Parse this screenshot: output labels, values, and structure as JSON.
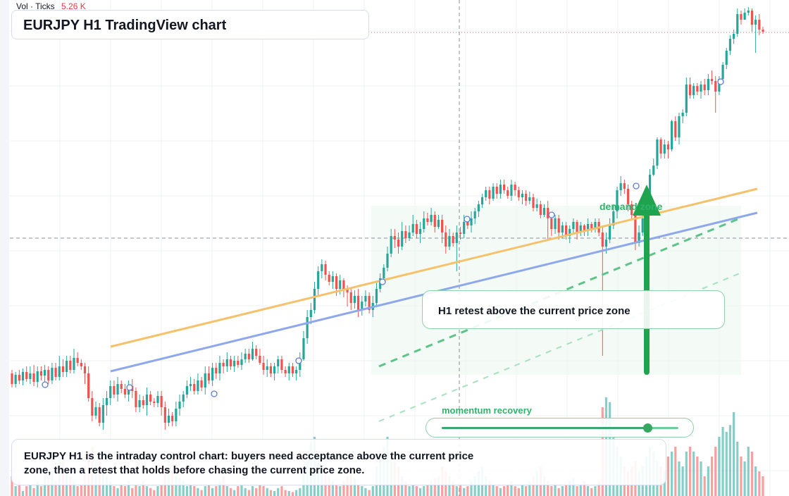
{
  "header": {
    "vol_label": "Vol · Ticks",
    "vol_value": "5.26 K",
    "title": "EURJPY H1 TradingView chart"
  },
  "annotations": {
    "callout": "H1 retest above the current price zone",
    "zone_label": "demand zone",
    "momentum_label": "momentum recovery",
    "momentum_level": 0.87,
    "summary": "EURJPY H1 is the intraday control chart: buyers need acceptance above the current price zone, then a retest that holds before chasing the current price zone."
  },
  "colors": {
    "bull": "#26a69a",
    "bear": "#ef5350",
    "accent_green": "#2eb36a",
    "orange_line": "#f5c26b",
    "blue_line": "#8fa8ec"
  },
  "chart_data": {
    "type": "candlestick",
    "title": "EURJPY H1 TradingView chart",
    "volume_label": "Vol · Ticks",
    "volume_value": "5.26 K",
    "grid": true,
    "legend": "none",
    "ohlc": [
      [
        530,
        545,
        525,
        550
      ],
      [
        545,
        532,
        528,
        550
      ],
      [
        532,
        540,
        525,
        545
      ],
      [
        540,
        528,
        523,
        547
      ],
      [
        528,
        538,
        520,
        542
      ],
      [
        538,
        530,
        520,
        545
      ],
      [
        530,
        542,
        518,
        548
      ],
      [
        542,
        527,
        520,
        550
      ],
      [
        527,
        533,
        520,
        540
      ],
      [
        533,
        525,
        518,
        542
      ],
      [
        525,
        540,
        520,
        545
      ],
      [
        540,
        522,
        515,
        545
      ],
      [
        522,
        535,
        515,
        540
      ],
      [
        535,
        520,
        505,
        540
      ],
      [
        520,
        528,
        510,
        535
      ],
      [
        528,
        512,
        505,
        535
      ],
      [
        512,
        525,
        505,
        530
      ],
      [
        525,
        508,
        495,
        530
      ],
      [
        508,
        515,
        500,
        520
      ],
      [
        515,
        520,
        510,
        525
      ],
      [
        520,
        530,
        515,
        545
      ],
      [
        530,
        565,
        520,
        570
      ],
      [
        565,
        590,
        555,
        598
      ],
      [
        590,
        578,
        570,
        595
      ],
      [
        578,
        600,
        572,
        605
      ],
      [
        600,
        575,
        565,
        610
      ],
      [
        575,
        565,
        555,
        590
      ],
      [
        565,
        548,
        540,
        575
      ],
      [
        548,
        560,
        540,
        565
      ],
      [
        560,
        545,
        535,
        570
      ],
      [
        545,
        552,
        540,
        558
      ],
      [
        552,
        560,
        545,
        565
      ],
      [
        560,
        548,
        540,
        570
      ],
      [
        548,
        555,
        538,
        565
      ],
      [
        555,
        578,
        550,
        585
      ],
      [
        578,
        568,
        560,
        585
      ],
      [
        568,
        575,
        562,
        580
      ],
      [
        575,
        560,
        550,
        590
      ],
      [
        560,
        570,
        555,
        575
      ],
      [
        570,
        572,
        565,
        578
      ],
      [
        572,
        562,
        555,
        578
      ],
      [
        562,
        578,
        555,
        590
      ],
      [
        578,
        600,
        570,
        610
      ],
      [
        600,
        590,
        580,
        605
      ],
      [
        590,
        598,
        585,
        605
      ],
      [
        598,
        580,
        570,
        605
      ],
      [
        580,
        570,
        560,
        590
      ],
      [
        570,
        560,
        555,
        578
      ],
      [
        560,
        548,
        540,
        565
      ],
      [
        548,
        545,
        535,
        555
      ],
      [
        545,
        555,
        538,
        560
      ],
      [
        555,
        540,
        530,
        560
      ],
      [
        540,
        550,
        535,
        555
      ],
      [
        550,
        530,
        520,
        560
      ],
      [
        530,
        540,
        520,
        545
      ],
      [
        540,
        522,
        515,
        548
      ],
      [
        522,
        530,
        515,
        538
      ],
      [
        530,
        515,
        505,
        540
      ],
      [
        515,
        520,
        510,
        530
      ],
      [
        520,
        510,
        500,
        528
      ],
      [
        510,
        520,
        505,
        525
      ],
      [
        520,
        512,
        505,
        528
      ],
      [
        512,
        518,
        505,
        522
      ],
      [
        518,
        510,
        500,
        525
      ],
      [
        510,
        502,
        495,
        515
      ],
      [
        502,
        510,
        495,
        515
      ],
      [
        510,
        495,
        485,
        512
      ],
      [
        495,
        505,
        490,
        510
      ],
      [
        505,
        515,
        495,
        518
      ],
      [
        515,
        525,
        505,
        532
      ],
      [
        525,
        520,
        510,
        535
      ],
      [
        520,
        530,
        515,
        535
      ],
      [
        530,
        520,
        515,
        540
      ],
      [
        520,
        510,
        505,
        530
      ],
      [
        510,
        525,
        505,
        530
      ],
      [
        525,
        530,
        520,
        535
      ],
      [
        530,
        520,
        515,
        540
      ],
      [
        520,
        530,
        515,
        535
      ],
      [
        530,
        525,
        520,
        540
      ],
      [
        525,
        510,
        500,
        535
      ],
      [
        510,
        480,
        470,
        512
      ],
      [
        480,
        450,
        440,
        488
      ],
      [
        450,
        440,
        430,
        460
      ],
      [
        440,
        410,
        400,
        445
      ],
      [
        410,
        385,
        378,
        420
      ],
      [
        385,
        375,
        368,
        395
      ],
      [
        375,
        390,
        370,
        398
      ],
      [
        390,
        400,
        385,
        405
      ],
      [
        400,
        392,
        385,
        410
      ],
      [
        392,
        410,
        388,
        420
      ],
      [
        410,
        398,
        390,
        418
      ],
      [
        398,
        410,
        395,
        422
      ],
      [
        410,
        415,
        405,
        435
      ],
      [
        415,
        430,
        410,
        440
      ],
      [
        430,
        420,
        412,
        438
      ],
      [
        420,
        440,
        410,
        450
      ],
      [
        440,
        428,
        420,
        448
      ],
      [
        428,
        420,
        412,
        435
      ],
      [
        420,
        440,
        415,
        445
      ],
      [
        440,
        430,
        420,
        450
      ],
      [
        430,
        410,
        400,
        435
      ],
      [
        410,
        395,
        388,
        415
      ],
      [
        395,
        380,
        375,
        402
      ],
      [
        380,
        360,
        350,
        385
      ],
      [
        360,
        335,
        325,
        365
      ],
      [
        335,
        340,
        325,
        352
      ],
      [
        340,
        350,
        330,
        360
      ],
      [
        350,
        328,
        315,
        355
      ],
      [
        328,
        338,
        320,
        345
      ],
      [
        338,
        330,
        320,
        342
      ],
      [
        330,
        318,
        305,
        335
      ],
      [
        318,
        332,
        312,
        338
      ],
      [
        332,
        325,
        315,
        345
      ],
      [
        325,
        310,
        300,
        330
      ],
      [
        310,
        315,
        302,
        320
      ],
      [
        315,
        305,
        295,
        320
      ],
      [
        305,
        322,
        300,
        330
      ],
      [
        322,
        312,
        305,
        325
      ],
      [
        312,
        330,
        305,
        345
      ],
      [
        330,
        350,
        320,
        360
      ],
      [
        350,
        335,
        325,
        355
      ],
      [
        335,
        345,
        330,
        350
      ],
      [
        345,
        330,
        320,
        385
      ],
      [
        330,
        332,
        322,
        340
      ],
      [
        332,
        315,
        305,
        338
      ],
      [
        315,
        320,
        310,
        325
      ],
      [
        320,
        310,
        300,
        330
      ],
      [
        310,
        300,
        295,
        318
      ],
      [
        300,
        290,
        285,
        308
      ],
      [
        290,
        280,
        275,
        295
      ],
      [
        280,
        270,
        265,
        285
      ],
      [
        270,
        282,
        265,
        290
      ],
      [
        282,
        265,
        260,
        285
      ],
      [
        265,
        275,
        260,
        282
      ],
      [
        275,
        262,
        255,
        282
      ],
      [
        262,
        270,
        255,
        275
      ],
      [
        270,
        278,
        265,
        282
      ],
      [
        278,
        262,
        255,
        285
      ],
      [
        262,
        270,
        258,
        278
      ],
      [
        270,
        280,
        265,
        285
      ],
      [
        280,
        275,
        270,
        290
      ],
      [
        275,
        285,
        270,
        292
      ],
      [
        285,
        280,
        272,
        290
      ],
      [
        280,
        295,
        275,
        300
      ],
      [
        295,
        290,
        282,
        300
      ],
      [
        290,
        305,
        285,
        310
      ],
      [
        305,
        295,
        290,
        308
      ],
      [
        295,
        310,
        285,
        340
      ],
      [
        310,
        325,
        305,
        335
      ],
      [
        325,
        310,
        305,
        332
      ],
      [
        310,
        330,
        305,
        340
      ],
      [
        330,
        320,
        315,
        338
      ],
      [
        320,
        335,
        315,
        340
      ],
      [
        335,
        325,
        320,
        345
      ],
      [
        325,
        315,
        310,
        332
      ],
      [
        315,
        330,
        312,
        340
      ],
      [
        330,
        320,
        315,
        335
      ],
      [
        320,
        328,
        318,
        335
      ],
      [
        328,
        318,
        310,
        335
      ],
      [
        318,
        325,
        315,
        330
      ],
      [
        325,
        315,
        310,
        330
      ],
      [
        315,
        330,
        310,
        335
      ],
      [
        330,
        350,
        320,
        505
      ],
      [
        350,
        340,
        330,
        360
      ],
      [
        340,
        320,
        310,
        345
      ],
      [
        320,
        300,
        290,
        325
      ],
      [
        300,
        270,
        265,
        310
      ],
      [
        270,
        260,
        250,
        278
      ],
      [
        260,
        268,
        255,
        275
      ],
      [
        268,
        290,
        262,
        300
      ],
      [
        290,
        305,
        285,
        310
      ],
      [
        305,
        345,
        300,
        355
      ],
      [
        345,
        330,
        320,
        350
      ],
      [
        330,
        310,
        300,
        335
      ],
      [
        310,
        290,
        285,
        320
      ],
      [
        290,
        248,
        240,
        295
      ],
      [
        248,
        235,
        225,
        250
      ],
      [
        235,
        198,
        195,
        240
      ],
      [
        198,
        218,
        195,
        225
      ],
      [
        218,
        205,
        198,
        225
      ],
      [
        205,
        212,
        200,
        225
      ],
      [
        212,
        172,
        170,
        215
      ],
      [
        172,
        195,
        165,
        200
      ],
      [
        195,
        165,
        160,
        205
      ],
      [
        165,
        160,
        155,
        175
      ],
      [
        160,
        120,
        110,
        165
      ],
      [
        120,
        135,
        110,
        140
      ],
      [
        135,
        122,
        118,
        140
      ],
      [
        122,
        130,
        118,
        135
      ],
      [
        130,
        120,
        115,
        140
      ],
      [
        120,
        128,
        112,
        135
      ],
      [
        128,
        112,
        105,
        135
      ],
      [
        112,
        115,
        100,
        120
      ],
      [
        115,
        130,
        108,
        160
      ],
      [
        130,
        112,
        108,
        135
      ],
      [
        112,
        92,
        88,
        115
      ],
      [
        92,
        72,
        68,
        98
      ],
      [
        72,
        55,
        50,
        78
      ],
      [
        55,
        48,
        42,
        62
      ],
      [
        48,
        20,
        12,
        52
      ],
      [
        20,
        28,
        15,
        35
      ],
      [
        28,
        18,
        12,
        22
      ],
      [
        18,
        15,
        10,
        22
      ],
      [
        15,
        35,
        12,
        45
      ],
      [
        35,
        28,
        22,
        75
      ],
      [
        28,
        42,
        20,
        50
      ],
      [
        42,
        45,
        38,
        48
      ]
    ],
    "volume": [
      0.2,
      0.1,
      0.15,
      0.05,
      0.1,
      0.12,
      0.08,
      0.15,
      0.1,
      0.3,
      0.2,
      0.25,
      0.15,
      0.4,
      0.35,
      0.3,
      0.2,
      0.15,
      0.1,
      0.12,
      0.3,
      0.45,
      0.5,
      0.35,
      0.4,
      0.25,
      0.2,
      0.15,
      0.1,
      0.08,
      0.12,
      0.1,
      0.15,
      0.08,
      0.12,
      0.1,
      0.15,
      0.1,
      0.08,
      0.06,
      0.1,
      0.12,
      0.3,
      0.4,
      0.25,
      0.2,
      0.18,
      0.15,
      0.1,
      0.12,
      0.1,
      0.08,
      0.06,
      0.1,
      0.12,
      0.08,
      0.1,
      0.15,
      0.2,
      0.1,
      0.08,
      0.06,
      0.1,
      0.12,
      0.08,
      0.06,
      0.1,
      0.08,
      0.12,
      0.1,
      0.08,
      0.06,
      0.05,
      0.08,
      0.1,
      0.06,
      0.05,
      0.04,
      0.06,
      0.08,
      0.3,
      0.45,
      0.55,
      0.6,
      0.4,
      0.3,
      0.25,
      0.2,
      0.15,
      0.12,
      0.1,
      0.15,
      0.2,
      0.25,
      0.18,
      0.12,
      0.1,
      0.08,
      0.06,
      0.1,
      0.3,
      0.4,
      0.5,
      0.6,
      0.45,
      0.35,
      0.3,
      0.2,
      0.15,
      0.1,
      0.12,
      0.1,
      0.08,
      0.1,
      0.12,
      0.15,
      0.18,
      0.2,
      0.3,
      0.25,
      0.2,
      0.15,
      0.1,
      0.12,
      0.08,
      0.1,
      0.15,
      0.2,
      0.25,
      0.3,
      0.2,
      0.15,
      0.12,
      0.1,
      0.08,
      0.1,
      0.12,
      0.15,
      0.1,
      0.08,
      0.12,
      0.1,
      0.15,
      0.2,
      0.25,
      0.3,
      0.2,
      0.15,
      0.1,
      0.12,
      0.08,
      0.1,
      0.12,
      0.15,
      0.18,
      0.1,
      0.12,
      0.15,
      0.1,
      0.08,
      0.1,
      0.15,
      0.9,
      1.0,
      0.95,
      0.6,
      0.5,
      0.4,
      0.3,
      0.25,
      0.3,
      0.35,
      0.25,
      0.3,
      0.4,
      0.5,
      0.45,
      0.35,
      0.3,
      0.25,
      0.4,
      0.45,
      0.5,
      0.35,
      0.3,
      0.45,
      0.5,
      0.45,
      0.4,
      0.35,
      0.2,
      0.3,
      0.4,
      0.5,
      0.6,
      0.7,
      0.65,
      0.72,
      0.85,
      0.55,
      0.4,
      0.35,
      0.5,
      0.45,
      0.3,
      0.25,
      0.2
    ]
  }
}
